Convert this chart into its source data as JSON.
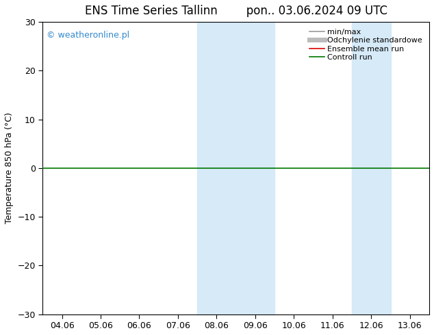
{
  "title_left": "ENS Time Series Tallinn",
  "title_right": "pon.. 03.06.2024 09 UTC",
  "ylabel": "Temperature 850 hPa (°C)",
  "ylim": [
    -30,
    30
  ],
  "yticks": [
    -30,
    -20,
    -10,
    0,
    10,
    20,
    30
  ],
  "xtick_labels": [
    "04.06",
    "05.06",
    "06.06",
    "07.06",
    "08.06",
    "09.06",
    "10.06",
    "11.06",
    "12.06",
    "13.06"
  ],
  "xtick_positions": [
    0,
    1,
    2,
    3,
    4,
    5,
    6,
    7,
    8,
    9
  ],
  "xlim": [
    -0.5,
    9.5
  ],
  "shaded_bands": [
    {
      "xmin": 3.5,
      "xmax": 4.5,
      "color": "#d6eaf8"
    },
    {
      "xmin": 4.5,
      "xmax": 5.5,
      "color": "#d6eaf8"
    },
    {
      "xmin": 7.5,
      "xmax": 8.5,
      "color": "#d6eaf8"
    }
  ],
  "hline_y": 0,
  "hline_color": "#007700",
  "hline_lw": 1.2,
  "watermark": "© weatheronline.pl",
  "watermark_color": "#3388cc",
  "legend_items": [
    {
      "label": "min/max",
      "color": "#999999",
      "lw": 1.2
    },
    {
      "label": "Odchylenie standardowe",
      "color": "#bbbbbb",
      "lw": 5
    },
    {
      "label": "Ensemble mean run",
      "color": "#dd0000",
      "lw": 1.2
    },
    {
      "label": "Controll run",
      "color": "#007700",
      "lw": 1.2
    }
  ],
  "bg_color": "#ffffff",
  "plot_bg_color": "#ffffff",
  "title_fontsize": 12,
  "axis_fontsize": 9,
  "tick_fontsize": 9,
  "legend_fontsize": 8,
  "watermark_fontsize": 9
}
